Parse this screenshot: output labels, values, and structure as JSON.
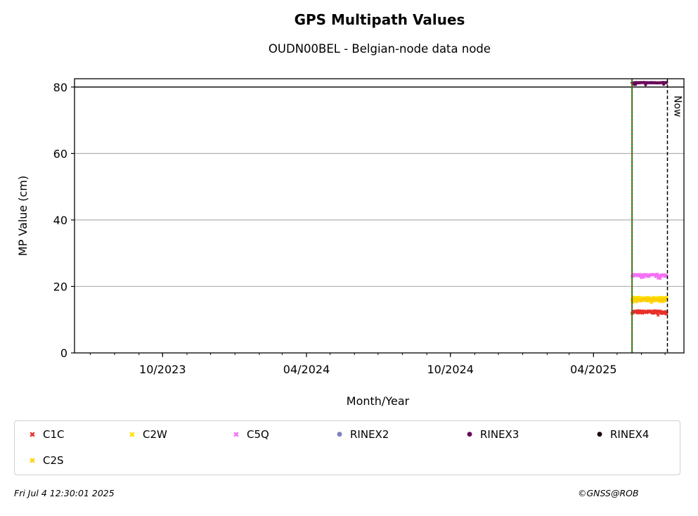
{
  "chart_data": {
    "type": "scatter",
    "title": "GPS Multipath Values",
    "subtitle": "OUDN00BEL - Belgian-node data node",
    "xlabel": "Month/Year",
    "ylabel": "MP Value (cm)",
    "ylim": [
      0,
      82.5
    ],
    "xlim": [
      "2023-06-11",
      "2025-07-25"
    ],
    "yticks": [
      0,
      20,
      40,
      60,
      80
    ],
    "xtick_labels": [
      "10/2023",
      "04/2024",
      "10/2024",
      "04/2025"
    ],
    "xtick_dates": [
      "2023-10-01",
      "2024-04-01",
      "2024-10-01",
      "2025-04-01"
    ],
    "grid": "horizontal",
    "threshold_line": 80,
    "start_marker_date": "2025-05-20",
    "now_marker": {
      "date": "2025-07-04",
      "label": "Now"
    },
    "data_range": [
      "2025-05-20",
      "2025-07-03"
    ],
    "series": [
      {
        "name": "C1C",
        "color": "#e8302a",
        "marker": "x",
        "mean": 12.3,
        "noise": 0.4
      },
      {
        "name": "C2W",
        "color": "#ffe000",
        "marker": "x",
        "mean": 16.4,
        "noise": 0.35
      },
      {
        "name": "C5Q",
        "color": "#f570f5",
        "marker": "x",
        "mean": 23.3,
        "noise": 0.35
      },
      {
        "name": "RINEX2",
        "color": "#8080c0",
        "marker": "o",
        "mean": null,
        "noise": 0
      },
      {
        "name": "RINEX3",
        "color": "#6a0a5a",
        "marker": "o",
        "mean": 81.3,
        "noise": 0.1
      },
      {
        "name": "RINEX4",
        "color": "#1a0010",
        "marker": "o",
        "mean": null,
        "noise": 0
      },
      {
        "name": "C2S",
        "color": "#ffd000",
        "marker": "x",
        "mean": 16.0,
        "noise": 0.35
      }
    ]
  },
  "footer": {
    "timestamp": "Fri Jul  4 12:30:01 2025",
    "copyright": "©GNSS@ROB"
  }
}
